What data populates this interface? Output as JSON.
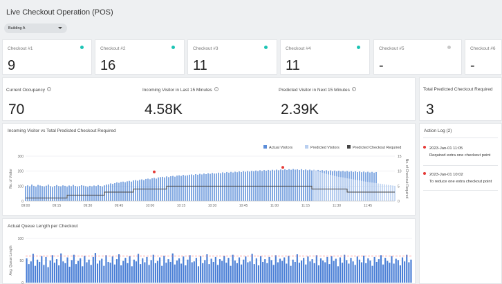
{
  "header": {
    "title": "Live Checkout Operation (POS)"
  },
  "building_select": {
    "value": "Building A"
  },
  "checkouts": [
    {
      "label": "Checkout #1",
      "value": "9",
      "status_color": "#1cc4b4"
    },
    {
      "label": "Checkout #2",
      "value": "16",
      "status_color": "#1cc4b4"
    },
    {
      "label": "Checkout #3",
      "value": "11",
      "status_color": "#1cc4b4"
    },
    {
      "label": "Checkout #4",
      "value": "11",
      "status_color": "#1cc4b4"
    },
    {
      "label": "Checkout #5",
      "value": "-",
      "status_color": "#c8c8c8"
    },
    {
      "label": "Checkout #6",
      "value": "-",
      "status_color": null
    }
  ],
  "metrics": {
    "occupancy": {
      "label": "Current Occupancy",
      "value": "70"
    },
    "incoming": {
      "label": "Incoming Visitor in Last 15 Minutes",
      "value": "4.58K"
    },
    "predicted": {
      "label": "Predicted Visitor in Next 15 Minutes",
      "value": "2.39K"
    },
    "checkout_required": {
      "label": "Total Predicted Checkout Required",
      "value": "3"
    }
  },
  "action_log": {
    "title": "Action Log (2)",
    "entries": [
      {
        "time": "2023-Jan-01 11:05",
        "message": "Required extra one checkout point"
      },
      {
        "time": "2023-Jan-01 10:02",
        "message": "To reduce one extra checkout point"
      }
    ]
  },
  "colors": {
    "actual": "#5b8dd9",
    "predicted": "#b9cff0",
    "checkout_line": "#444444",
    "threshold": "#ff7b7b",
    "queue_bar": "#4a7fd6",
    "alert": "#e53935"
  },
  "chart_data": [
    {
      "type": "bar",
      "title": "Incoming Visitor vs Total Predicted Checkout Required",
      "legend": [
        "Actual Visitors",
        "Predicted Visitors",
        "Predicted Checkout Required"
      ],
      "legend_position": "top-right",
      "ylabel": "No. of Visitor",
      "y2label": "No. of Checkout Required",
      "ylim": [
        0,
        300
      ],
      "y2lim": [
        0,
        15
      ],
      "y_ticks": [
        "0",
        "100",
        "200",
        "300"
      ],
      "y2_ticks": [
        "0",
        "5",
        "10",
        "15"
      ],
      "x_ticks": [
        "09:00",
        "09:15",
        "09:30",
        "09:45",
        "10:00",
        "10:15",
        "10:30",
        "10:45",
        "11:00",
        "11:15",
        "11:30",
        "11:45"
      ],
      "x_tick_minutes": [
        0,
        15,
        30,
        45,
        60,
        75,
        90,
        105,
        120,
        135,
        150,
        165
      ],
      "x_range_minutes": [
        0,
        178
      ],
      "actual_visitors": [
        100,
        105,
        98,
        110,
        102,
        96,
        108,
        104,
        100,
        97,
        103,
        110,
        99,
        94,
        101,
        107,
        100,
        98,
        105,
        102,
        96,
        104,
        99,
        108,
        101,
        97,
        100,
        106,
        103,
        99,
        95,
        102,
        98,
        104,
        100,
        107,
        101,
        97,
        105,
        110,
        112,
        118,
        115,
        120,
        125,
        122,
        128,
        130,
        126,
        132,
        135,
        130,
        138,
        140,
        136,
        142,
        145,
        140,
        148,
        150,
        146,
        152,
        155,
        150,
        158,
        160,
        162,
        158,
        165,
        160,
        166,
        168,
        163,
        170,
        172,
        168,
        175,
        170,
        172,
        176,
        178,
        174,
        180,
        176,
        182,
        178,
        184,
        180,
        186,
        182,
        188,
        184,
        185,
        190,
        186,
        192,
        188,
        194,
        190,
        195,
        191,
        196,
        193,
        198,
        194,
        200,
        196,
        201,
        197,
        202,
        199,
        204,
        200,
        206,
        201,
        207,
        203,
        208,
        204,
        209,
        205,
        210,
        206,
        211,
        207,
        212,
        208,
        213,
        209,
        214,
        210,
        212,
        208,
        213,
        207,
        211,
        206,
        210,
        205,
        209,
        204,
        208,
        203,
        207,
        202,
        206,
        201,
        205,
        200,
        204,
        199,
        203,
        198,
        202,
        197,
        201,
        196,
        200,
        195,
        199,
        194,
        198,
        193,
        197,
        192,
        196,
        191,
        195,
        190,
        194
      ],
      "predicted_visitors": [
        210,
        205,
        200,
        195,
        190,
        186,
        182,
        178,
        175,
        172,
        168,
        165,
        162,
        160,
        158,
        155,
        152,
        150,
        148,
        145,
        142,
        140,
        138,
        135,
        132,
        130,
        128,
        126,
        124,
        122,
        120,
        118,
        116,
        114,
        112,
        110,
        108,
        106,
        104,
        102
      ],
      "predicted_visitors_x_minutes": [
        139,
        140,
        141,
        142,
        143,
        144,
        145,
        146,
        147,
        148,
        149,
        150,
        151,
        152,
        153,
        154,
        155,
        156,
        157,
        158,
        159,
        160,
        161,
        162,
        163,
        164,
        165,
        166,
        167,
        168,
        169,
        170,
        171,
        172,
        173,
        174,
        175,
        176,
        177,
        178
      ],
      "checkout_required": [
        {
          "x": 0,
          "y": 1
        },
        {
          "x": 20,
          "y": 1
        },
        {
          "x": 20,
          "y": 2
        },
        {
          "x": 38,
          "y": 2
        },
        {
          "x": 38,
          "y": 3
        },
        {
          "x": 52,
          "y": 3
        },
        {
          "x": 52,
          "y": 4
        },
        {
          "x": 68,
          "y": 4
        },
        {
          "x": 68,
          "y": 5
        },
        {
          "x": 138,
          "y": 5
        },
        {
          "x": 138,
          "y": 4
        },
        {
          "x": 155,
          "y": 4
        },
        {
          "x": 155,
          "y": 3
        },
        {
          "x": 178,
          "y": 3
        }
      ],
      "alerts": [
        {
          "x": 62,
          "y": 195
        },
        {
          "x": 124,
          "y": 225
        }
      ]
    },
    {
      "type": "bar",
      "title": "Actual Queue Length per Checkout",
      "ylabel": "Avg. Queue Length",
      "ylim": [
        0,
        100
      ],
      "y_ticks": [
        "0",
        "50",
        "100"
      ],
      "threshold": 60,
      "values": [
        55,
        42,
        48,
        65,
        38,
        52,
        47,
        60,
        40,
        58,
        35,
        50,
        62,
        45,
        53,
        39,
        66,
        48,
        44,
        57,
        36,
        51,
        63,
        42,
        49,
        55,
        37,
        61,
        46,
        52,
        40,
        58,
        67,
        43,
        50,
        54,
        38,
        62,
        47,
        45,
        59,
        41,
        53,
        64,
        39,
        49,
        56,
        44,
        60,
        37,
        52,
        48,
        65,
        42,
        55,
        46,
        58,
        40,
        51,
        63,
        44,
        49,
        57,
        38,
        61,
        45,
        53,
        47,
        66,
        41,
        50,
        55,
        43,
        59,
        39,
        52,
        62,
        46,
        48,
        56,
        37,
        60,
        44,
        51,
        64,
        42,
        54,
        47,
        58,
        40,
        53,
        49,
        61,
        45,
        56,
        38,
        63,
        50,
        44,
        57,
        41,
        52,
        59,
        46,
        48,
        65,
        42,
        55,
        39,
        60,
        47,
        53,
        44,
        58,
        51,
        40,
        62,
        46,
        54,
        49,
        57,
        43,
        61,
        38,
        52,
        47,
        64,
        45,
        50,
        56,
        41,
        59,
        48,
        53,
        44,
        62,
        39,
        55,
        50,
        46,
        58,
        42,
        60,
        49,
        54,
        37,
        57,
        45,
        63,
        51,
        43,
        56,
        48,
        40,
        59,
        52,
        46,
        61,
        44,
        55,
        50,
        38,
        58,
        47,
        53,
        62,
        41,
        56,
        49,
        45,
        60,
        43,
        54,
        51,
        39,
        57,
        48,
        63,
        46,
        52
      ]
    }
  ]
}
